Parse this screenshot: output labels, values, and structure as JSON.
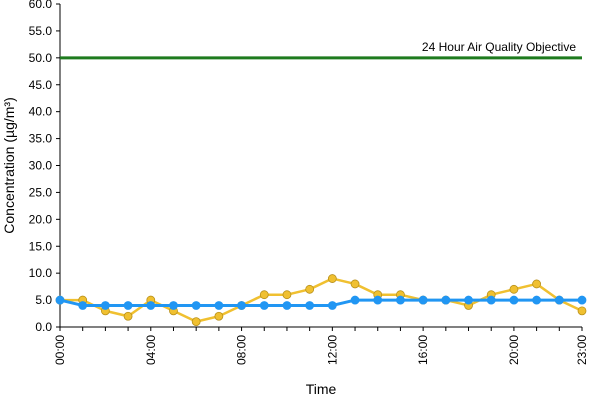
{
  "chart_data": {
    "type": "line",
    "xlabel": "Time",
    "ylabel": "Concentration (µg/m³)",
    "ylim": [
      0,
      60
    ],
    "y_ticks": [
      "0.0",
      "5.0",
      "10.0",
      "15.0",
      "20.0",
      "25.0",
      "30.0",
      "35.0",
      "40.0",
      "45.0",
      "50.0",
      "55.0",
      "60.0"
    ],
    "x_ticks": [
      "00:00",
      "04:00",
      "08:00",
      "12:00",
      "16:00",
      "20:00",
      "23:00"
    ],
    "grid": false,
    "legend": "none",
    "x": [
      0,
      1,
      2,
      3,
      4,
      5,
      6,
      7,
      8,
      9,
      10,
      11,
      12,
      13,
      14,
      15,
      16,
      17,
      18,
      19,
      20,
      21,
      22,
      23
    ],
    "series": [
      {
        "color": "#f0c030",
        "values": [
          5,
          5,
          3,
          2,
          5,
          3,
          1,
          2,
          4,
          6,
          6,
          7,
          9,
          8,
          6,
          6,
          5,
          5,
          4,
          6,
          7,
          8,
          5,
          3
        ]
      },
      {
        "color": "#2196f3",
        "values": [
          5,
          4,
          4,
          4,
          4,
          4,
          4,
          4,
          4,
          4,
          4,
          4,
          4,
          5,
          5,
          5,
          5,
          5,
          5,
          5,
          5,
          5,
          5,
          5
        ]
      }
    ],
    "reference_line": {
      "value": 50,
      "label": "24 Hour Air Quality Objective",
      "color": "#1e7b1e"
    },
    "colors": {
      "yellow_line": "#f0c030",
      "yellow_marker_edge": "#b8901a",
      "blue_line": "#2196f3",
      "green_line": "#1e7b1e"
    }
  }
}
